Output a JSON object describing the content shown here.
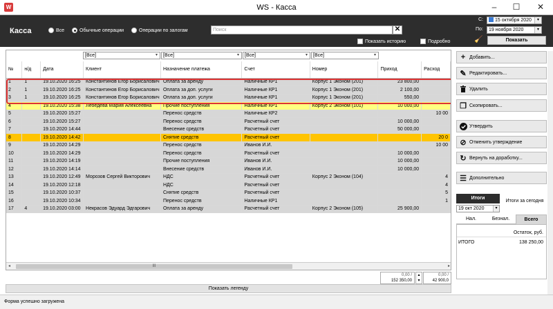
{
  "window": {
    "title": "WS - Касса",
    "icon": "app-icon",
    "min": "–",
    "max": "☐",
    "close": "✕"
  },
  "header": {
    "title": "Касса",
    "radios": [
      {
        "label": "Все",
        "selected": false
      },
      {
        "label": "Обычные операции",
        "selected": true
      },
      {
        "label": "Операции по залогам",
        "selected": false
      }
    ],
    "search_placeholder": "Поиск",
    "search_clear": "✕",
    "show_history": "Показать историю",
    "detailed": "Подробно",
    "date_from_label": "С:",
    "date_from": "15 октября 2020",
    "date_to_label": "По:",
    "date_to": "19 ноября 2020",
    "show_button": "Показать"
  },
  "filters": [
    "[Все]",
    "[Все]",
    "[Все]",
    "[Все]"
  ],
  "columns": [
    "№",
    "н/д",
    "Дата",
    "Клиент",
    "Назначение платежа",
    "Счет",
    "Номер",
    "Приход",
    "Расход"
  ],
  "rows": [
    {
      "style": "gray",
      "cells": [
        "1",
        "1",
        "19.10.2020 16:25",
        "Константинов Егор Борисалович",
        "Оплата за аренду",
        "Наличные КР1",
        "Корпус 1 Эконом (201)",
        "23 800,00",
        ""
      ]
    },
    {
      "style": "gray",
      "cells": [
        "2",
        "1",
        "19.10.2020 16:25",
        "Константинов Егор Борисалович",
        "Оплата за доп. услуги",
        "Наличные КР1",
        "Корпус 1 Эконом (201)",
        "2 100,00",
        ""
      ]
    },
    {
      "style": "gray",
      "cells": [
        "3",
        "1",
        "19.10.2020 16:25",
        "Константинов Егор Борисалович",
        "Оплата за доп. услуги",
        "Наличные КР1",
        "Корпус 1 Эконом (201)",
        "550,00",
        ""
      ]
    },
    {
      "style": "yellow",
      "cells": [
        "4",
        "",
        "19.10.2020 15:38",
        "Лебедева Мария Алексеевна",
        "Прочие поступления",
        "Наличные КР1",
        "Корпус 2 Эконом (101)",
        "10 000,00",
        ""
      ]
    },
    {
      "style": "gray",
      "cells": [
        "5",
        "",
        "19.10.2020 15:27",
        "",
        "Перенос средств",
        "Наличные КР2",
        "",
        "",
        "10 00"
      ]
    },
    {
      "style": "gray",
      "cells": [
        "6",
        "",
        "19.10.2020 15:27",
        "",
        "Перенос средств",
        "Расчетный счет",
        "",
        "10 000,00",
        ""
      ]
    },
    {
      "style": "gray",
      "cells": [
        "7",
        "",
        "19.10.2020 14:44",
        "",
        "Внесение средств",
        "Расчетный счет",
        "",
        "50 000,00",
        ""
      ]
    },
    {
      "style": "orange",
      "cells": [
        "8",
        "",
        "19.10.2020 14:42",
        "",
        "Снятие средств",
        "Расчетный счет",
        "",
        "",
        "20 0"
      ]
    },
    {
      "style": "gray",
      "cells": [
        "9",
        "",
        "19.10.2020 14:29",
        "",
        "Перенос средств",
        "Иванов И.И.",
        "",
        "",
        "10 00"
      ]
    },
    {
      "style": "gray",
      "cells": [
        "10",
        "",
        "19.10.2020 14:29",
        "",
        "Перенос средств",
        "Расчетный счет",
        "",
        "10 000,00",
        ""
      ]
    },
    {
      "style": "gray",
      "cells": [
        "11",
        "",
        "19.10.2020 14:19",
        "",
        "Прочие поступления",
        "Иванов И.И.",
        "",
        "10 000,00",
        ""
      ]
    },
    {
      "style": "gray",
      "cells": [
        "12",
        "",
        "19.10.2020 14:14",
        "",
        "Внесение средств",
        "Иванов И.И.",
        "",
        "10 000,00",
        ""
      ]
    },
    {
      "style": "gray",
      "cells": [
        "13",
        "",
        "19.10.2020 12:49",
        "Морозов Сергей Викторович",
        "НДС",
        "Расчетный счет",
        "Корпус 2 Эконом (104)",
        "",
        "4"
      ]
    },
    {
      "style": "gray",
      "cells": [
        "14",
        "",
        "19.10.2020 12:18",
        "",
        "НДС",
        "Расчетный счет",
        "",
        "",
        "4"
      ]
    },
    {
      "style": "gray",
      "cells": [
        "15",
        "",
        "19.10.2020 10:37",
        "",
        "Снятие средств",
        "Расчетный счет",
        "",
        "",
        "5"
      ]
    },
    {
      "style": "gray",
      "cells": [
        "16",
        "",
        "19.10.2020 10:34",
        "",
        "Перенос средств",
        "Наличные КР1",
        "",
        "",
        "1"
      ]
    },
    {
      "style": "gray",
      "cells": [
        "17",
        "4",
        "19.10.2020 03:00",
        "Некрасов Эдуард Эдгарович",
        "Оплата за аренду",
        "Расчетный счет",
        "Корпус 2 Эконом (105)",
        "25 900,00",
        ""
      ]
    }
  ],
  "hscroll_thumb": "III",
  "totals": {
    "prihod_zero": "0,00 /",
    "prihod_total": "152 350,00",
    "rashod_zero": "0,00 /",
    "rashod_total": "42 900,0"
  },
  "legend_button": "Показать легенду",
  "side_buttons": [
    {
      "label": "Добавить...",
      "icon": "plus-icon",
      "glyph": "+"
    },
    {
      "label": "Редактировать...",
      "icon": "pencil-icon",
      "glyph": "✎"
    },
    {
      "label": "Удалить",
      "icon": "trash-icon",
      "glyph": "🗑"
    },
    {
      "label": "Скопировать...",
      "icon": "copy-icon",
      "glyph": "❐"
    },
    {
      "label": "Утвердить",
      "icon": "check-circle-icon",
      "glyph": "✔"
    },
    {
      "label": "Отменить утверждение",
      "icon": "cancel-circle-icon",
      "glyph": "⊘"
    },
    {
      "label": "Вернуть на доработку...",
      "icon": "return-icon",
      "glyph": "↻"
    },
    {
      "label": "Дополнительно",
      "icon": "more-list-icon",
      "glyph": "☰"
    }
  ],
  "itogi": {
    "tab_label": "Итоги",
    "date": "19 окт 2020",
    "today_label": "Итоги за сегодня",
    "pay_tabs": [
      "Нал.",
      "Безнал.",
      "Всего"
    ],
    "active_tab": "Всего",
    "col_header": "Остаток, руб.",
    "row_label": "ИТОГО",
    "row_value": "138 250,00"
  },
  "status": "Форма успешно загружена",
  "colors": {
    "header_bg": "#2d2d2d",
    "row_gray": "#d7d7d7",
    "row_yellow": "#ffff80",
    "row_orange": "#ffc400",
    "highlight_border": "#d33333"
  }
}
